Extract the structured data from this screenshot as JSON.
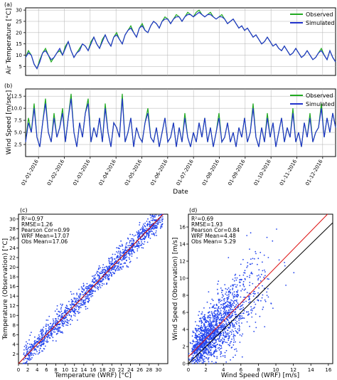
{
  "chart_data": [
    {
      "type": "line",
      "panel": "(a)",
      "xlabel": "",
      "ylabel": "Air Temperature [°C]",
      "ylim": [
        1,
        31
      ],
      "yticks": [
        5,
        10,
        15,
        20,
        25,
        30
      ],
      "grid": true,
      "legend_position": "top-right",
      "x_unit": "day-of-year 2016",
      "series": [
        {
          "name": "Observed",
          "color": "#22aa22",
          "values": [
            9,
            12,
            10,
            6,
            4,
            8,
            11,
            13,
            10,
            7,
            9,
            11,
            12,
            10,
            14,
            16,
            12,
            9,
            11,
            13,
            15,
            14,
            12,
            16,
            18,
            15,
            13,
            17,
            19,
            16,
            14,
            18,
            20,
            17,
            15,
            19,
            21,
            23,
            20,
            18,
            22,
            24,
            21,
            20,
            23,
            25,
            24,
            22,
            25,
            27,
            26,
            24,
            26,
            28,
            27,
            25,
            27,
            29,
            28,
            27,
            29,
            30,
            28,
            27,
            28,
            29,
            27,
            26,
            27,
            28,
            26,
            24,
            25,
            26,
            24,
            22,
            23,
            21,
            22,
            20,
            18,
            19,
            17,
            15,
            16,
            18,
            16,
            14,
            15,
            13,
            12,
            14,
            12,
            10,
            11,
            13,
            11,
            9,
            10,
            12,
            10,
            8,
            9,
            11,
            13,
            10,
            8,
            12,
            9,
            7
          ]
        },
        {
          "name": "Simulated",
          "color": "#2233cc",
          "values": [
            9,
            11,
            10,
            6,
            4,
            7,
            11,
            12,
            10,
            8,
            9,
            11,
            13,
            10,
            13,
            16,
            12,
            9,
            11,
            12,
            15,
            14,
            12,
            15,
            18,
            15,
            13,
            16,
            19,
            16,
            14,
            18,
            19,
            17,
            15,
            19,
            21,
            22,
            20,
            18,
            22,
            23,
            21,
            20,
            23,
            25,
            24,
            22,
            25,
            26,
            26,
            24,
            26,
            27,
            27,
            25,
            27,
            28,
            28,
            27,
            28,
            29,
            28,
            27,
            28,
            28,
            27,
            26,
            27,
            27,
            26,
            24,
            25,
            26,
            24,
            22,
            23,
            21,
            22,
            20,
            18,
            19,
            17,
            15,
            16,
            18,
            16,
            14,
            15,
            13,
            12,
            14,
            12,
            10,
            11,
            13,
            11,
            9,
            10,
            12,
            10,
            8,
            9,
            11,
            12,
            10,
            8,
            12,
            9,
            7
          ]
        }
      ]
    },
    {
      "type": "line",
      "panel": "(b)",
      "xlabel": "Date",
      "ylabel": "Wind Speed [m/sec]",
      "ylim": [
        0,
        14
      ],
      "yticks": [
        2.5,
        5.0,
        7.5,
        10.0,
        12.5
      ],
      "grid": true,
      "legend_position": "top-right",
      "xtick_labels": [
        "01-01-2016",
        "01-02-2016",
        "01-03-2016",
        "01-04-2016",
        "01-05-2016",
        "01-06-2016",
        "01-07-2016",
        "01-08-2016",
        "01-09-2016",
        "01-10-2016",
        "01-11-2016",
        "01-12-2016"
      ],
      "series": [
        {
          "name": "Observed",
          "color": "#22aa22",
          "values": [
            3,
            8,
            5,
            11,
            4,
            2,
            7,
            12,
            5,
            3,
            9,
            4,
            6,
            10,
            3,
            8,
            13,
            5,
            2,
            7,
            4,
            9,
            12,
            3,
            6,
            4,
            8,
            3,
            11,
            5,
            2,
            7,
            6,
            4,
            13,
            3,
            5,
            8,
            2,
            6,
            4,
            3,
            7,
            10,
            4,
            3,
            6,
            2,
            5,
            8,
            3,
            4,
            7,
            2,
            6,
            3,
            9,
            4,
            2,
            5,
            3,
            7,
            4,
            8,
            3,
            6,
            2,
            5,
            9,
            3,
            4,
            7,
            3,
            5,
            2,
            6,
            4,
            8,
            3,
            5,
            11,
            4,
            2,
            6,
            3,
            9,
            4,
            7,
            2,
            5,
            8,
            3,
            6,
            4,
            10,
            3,
            5,
            2,
            7,
            4,
            9,
            3,
            5,
            6,
            11,
            4,
            8,
            5,
            9,
            6
          ]
        },
        {
          "name": "Simulated",
          "color": "#2233cc",
          "values": [
            3,
            7,
            5,
            10,
            4,
            2,
            7,
            11,
            5,
            3,
            8,
            4,
            6,
            9,
            3,
            8,
            12,
            5,
            2,
            7,
            4,
            9,
            11,
            3,
            6,
            4,
            8,
            3,
            10,
            5,
            2,
            7,
            6,
            4,
            12,
            3,
            5,
            8,
            2,
            6,
            4,
            3,
            7,
            9,
            4,
            3,
            6,
            2,
            5,
            8,
            3,
            4,
            7,
            2,
            6,
            3,
            8,
            4,
            2,
            5,
            3,
            7,
            4,
            8,
            3,
            6,
            2,
            5,
            8,
            3,
            4,
            7,
            3,
            5,
            2,
            6,
            4,
            8,
            3,
            5,
            10,
            4,
            2,
            6,
            3,
            8,
            4,
            7,
            2,
            5,
            8,
            3,
            6,
            4,
            9,
            3,
            5,
            2,
            7,
            4,
            8,
            3,
            5,
            6,
            10,
            4,
            8,
            5,
            9,
            6
          ]
        }
      ]
    },
    {
      "type": "scatter",
      "panel": "(c)",
      "xlabel": "Temperature (WRF) [°C]",
      "ylabel": "Temperature (Observation) [°C]",
      "xlim": [
        0,
        32
      ],
      "ylim": [
        0,
        31
      ],
      "xticks": [
        0,
        2,
        4,
        6,
        8,
        10,
        12,
        14,
        16,
        18,
        20,
        22,
        24,
        26,
        28,
        30
      ],
      "yticks": [
        2,
        4,
        6,
        8,
        10,
        12,
        14,
        16,
        18,
        20,
        22,
        24,
        26,
        28,
        30
      ],
      "point_color": "#2244ee",
      "fit_line": {
        "slope": 1.0,
        "intercept": 0.0,
        "color": "#dd1111"
      },
      "one_to_one_line": {
        "color": "#000000"
      },
      "stats": [
        "R²=0.97",
        "RMSE=1.26",
        "Pearson Cor=0.99",
        "WRF Mean=17.07",
        "Obs Mean=17.06"
      ],
      "points_generated": {
        "count": 1400,
        "x_range": [
          1,
          31
        ],
        "noise_sd": 1.2,
        "seed": 7
      }
    },
    {
      "type": "scatter",
      "panel": "(d)",
      "xlabel": "Wind Speed  (WRF) [m/s]",
      "ylabel": "Wind Speed (Observation) [m/s]",
      "xlim": [
        0,
        16.5
      ],
      "ylim": [
        0,
        17.5
      ],
      "xticks": [
        0,
        2,
        4,
        6,
        8,
        10,
        12,
        14,
        16
      ],
      "yticks": [
        0,
        2,
        4,
        6,
        8,
        10,
        12,
        14,
        16
      ],
      "point_color": "#2244ee",
      "fit_line": {
        "slope": 1.05,
        "intercept": 0.8,
        "color": "#dd1111"
      },
      "one_to_one_line": {
        "color": "#000000"
      },
      "stats": [
        "R²=0.69",
        "RMSE=1.93",
        "Pearson Cor=0.84",
        "WRF Mean=4.48",
        "Obs Mean= 5.29"
      ],
      "points_generated": {
        "count": 1600,
        "x_range": [
          0,
          13
        ],
        "noise_sd": 1.9,
        "seed": 11
      }
    }
  ]
}
